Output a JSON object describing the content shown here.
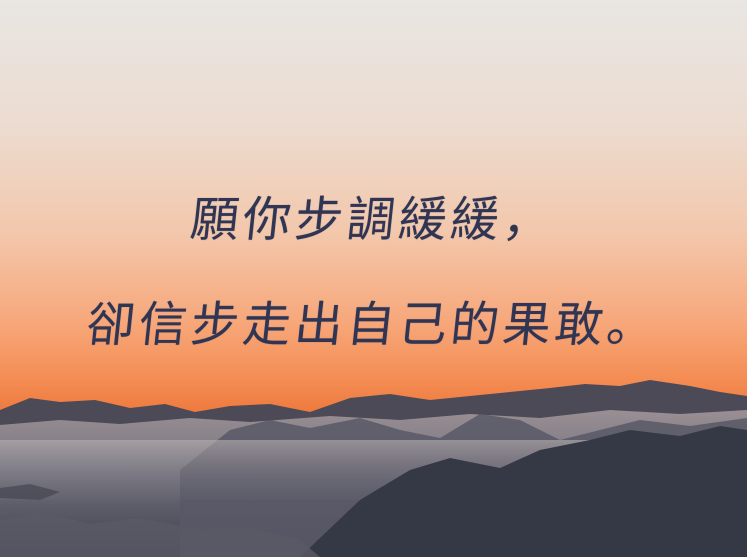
{
  "quote": {
    "line1": "願你步調緩緩，",
    "line2": "卻信步走出自己的果敢。"
  }
}
